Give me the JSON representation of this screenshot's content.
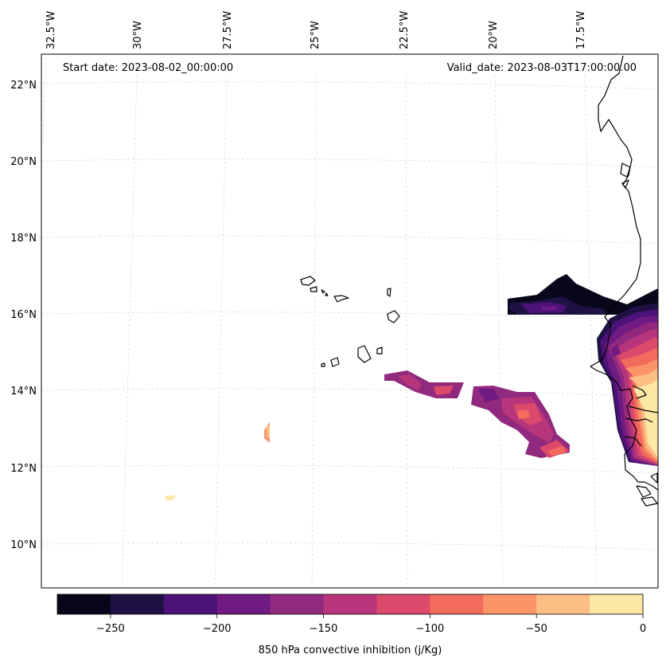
{
  "map": {
    "start_label": "Start date: 2023-08-02_00:00:00",
    "valid_label": "Valid_date: 2023-08-03T17:00:00.00",
    "lon_labels": [
      "32.5°W",
      "30°W",
      "27.5°W",
      "25°W",
      "22.5°W",
      "20°W",
      "17.5°W"
    ],
    "lat_labels": [
      "22°N",
      "20°N",
      "18°N",
      "16°N",
      "14°N",
      "12°N",
      "10°N"
    ]
  },
  "colorbar": {
    "title": "850 hPa convective inhibition (j/Kg)",
    "tick_labels": [
      "−250",
      "−200",
      "−150",
      "−100",
      "−50",
      "0"
    ],
    "levels": [
      -275,
      -250,
      -225,
      -200,
      -175,
      -150,
      -125,
      -100,
      -75,
      -50,
      -25,
      0
    ],
    "colors": [
      "#07061b",
      "#1f1144",
      "#4d1278",
      "#701b81",
      "#912a7e",
      "#b7367b",
      "#dc4a6b",
      "#f26b5c",
      "#fb9468",
      "#fdbe85",
      "#fde7a5"
    ]
  },
  "colors": {
    "coast": "#000000",
    "grid": "#cccccc"
  }
}
